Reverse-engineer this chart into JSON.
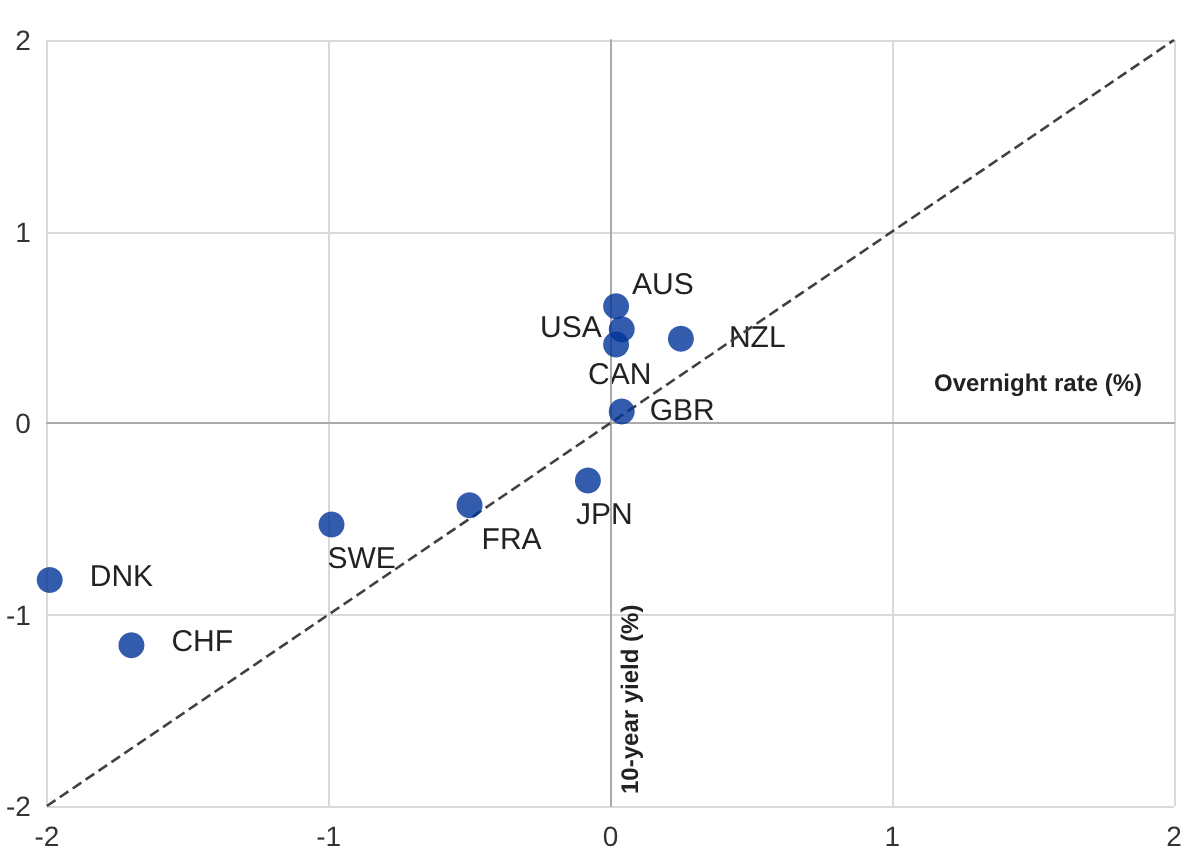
{
  "chart_data": {
    "type": "scatter",
    "xlabel": "Overnight rate (%)",
    "ylabel": "10-year yield (%)",
    "xlim": [
      -2,
      2
    ],
    "xticks": [
      -2,
      -1,
      0,
      1,
      2
    ],
    "ylim": [
      -2,
      2
    ],
    "yticks": [
      -2,
      -1,
      0,
      1,
      2
    ],
    "grid": true,
    "marker": "circle",
    "series": [
      {
        "type": "scatter",
        "color": "#003399",
        "x": [
          0.02,
          0.04,
          0.02,
          0.25,
          0.04,
          -0.08,
          -0.5,
          -0.99,
          -1.99,
          -1.7
        ],
        "values": [
          0.61,
          0.49,
          0.41,
          0.44,
          0.06,
          -0.3,
          -0.43,
          -0.53,
          -0.82,
          -1.16
        ]
      },
      {
        "type": "line",
        "color": "#404040",
        "line_style": "dashed",
        "marker": "none",
        "x": [
          -2,
          2
        ],
        "values": [
          -2,
          2
        ]
      }
    ],
    "annotations": [
      {
        "text": "AUS",
        "x": 0.02,
        "y": 0.61
      },
      {
        "text": "USA",
        "x": 0.04,
        "y": 0.49
      },
      {
        "text": "CAN",
        "x": 0.02,
        "y": 0.41
      },
      {
        "text": "NZL",
        "x": 0.25,
        "y": 0.44
      },
      {
        "text": "GBR",
        "x": 0.04,
        "y": 0.06
      },
      {
        "text": "JPN",
        "x": -0.08,
        "y": -0.3
      },
      {
        "text": "FRA",
        "x": -0.5,
        "y": -0.43
      },
      {
        "text": "SWE",
        "x": -0.99,
        "y": -0.53
      },
      {
        "text": "DNK",
        "x": -1.99,
        "y": -0.82
      },
      {
        "text": "CHF",
        "x": -1.7,
        "y": -1.16
      }
    ]
  }
}
